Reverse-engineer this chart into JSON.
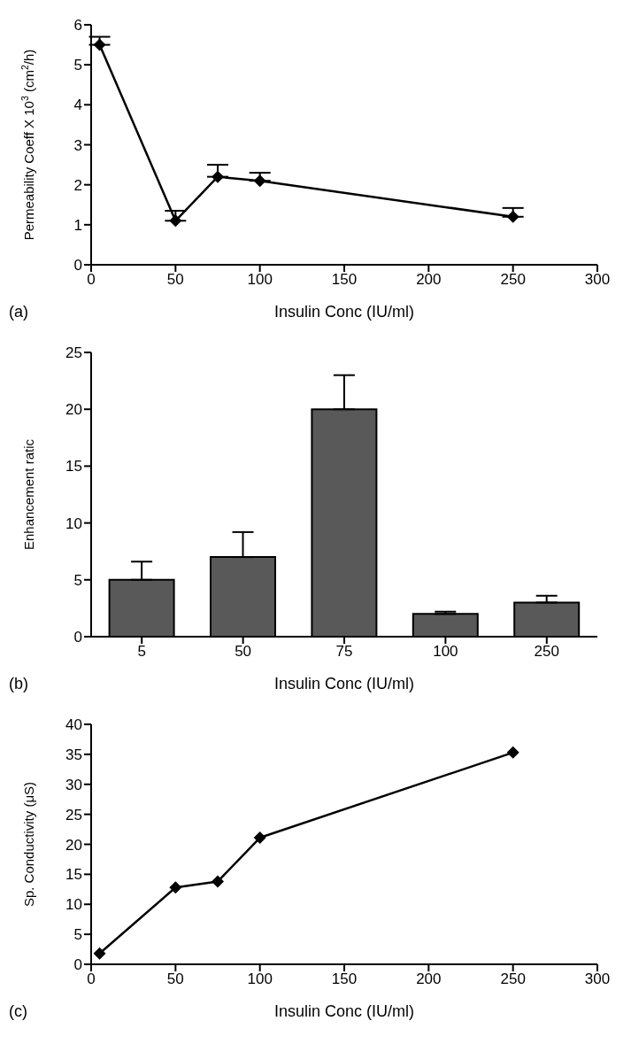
{
  "chart_data": [
    {
      "type": "line",
      "xlabel": "Insulin Conc (IU/ml)",
      "ylabel": "Permeability Coeff X 10$^{3}$ (cm$^{2}$/h)",
      "annotations": [
        "(a)"
      ],
      "x": [
        5,
        50,
        75,
        100,
        250
      ],
      "series": [
        {
          "color": "#000000",
          "values": [
            5.5,
            1.1,
            2.2,
            2.1,
            1.2
          ],
          "errors": [
            [
              5.5,
              5.7
            ],
            [
              1.1,
              1.35
            ],
            [
              2.2,
              2.5
            ],
            [
              2.1,
              2.3
            ],
            [
              1.2,
              1.42
            ]
          ]
        }
      ],
      "xlim": [
        0,
        300
      ],
      "xticks": [
        0,
        50,
        100,
        150,
        200,
        250,
        300
      ],
      "ylim": [
        0,
        6
      ],
      "yticks": [
        0,
        1,
        2,
        3,
        4,
        5,
        6
      ],
      "grid": false,
      "marker": "diamond",
      "line_style": "solid"
    },
    {
      "type": "bar",
      "xlabel": "Insulin Conc (IU/ml)",
      "ylabel": "Enhancement ratic",
      "annotations": [
        "(b)"
      ],
      "categories": [
        "5",
        "50",
        "75",
        "100",
        "250"
      ],
      "series": [
        {
          "color": "#595959",
          "values": [
            5,
            7,
            20,
            2,
            3
          ],
          "errors": [
            [
              5,
              6.6
            ],
            [
              7,
              9.2
            ],
            [
              20,
              23
            ],
            [
              2,
              2.2
            ],
            [
              3,
              3.6
            ]
          ]
        }
      ],
      "ylim": [
        0,
        25
      ],
      "yticks": [
        0,
        5,
        10,
        15,
        20,
        25
      ],
      "grid": false
    },
    {
      "type": "line",
      "xlabel": "Insulin Conc (IU/ml)",
      "ylabel": "Sp. Conductivity (μS)",
      "annotations": [
        "(c)"
      ],
      "x": [
        5,
        50,
        75,
        100,
        250
      ],
      "series": [
        {
          "color": "#000000",
          "values": [
            1.8,
            12.8,
            13.8,
            21.1,
            35.3
          ]
        }
      ],
      "xlim": [
        0,
        300
      ],
      "xticks": [
        0,
        50,
        100,
        150,
        200,
        250,
        300
      ],
      "ylim": [
        0,
        40
      ],
      "yticks": [
        0,
        5,
        10,
        15,
        20,
        25,
        30,
        35,
        40
      ],
      "grid": false,
      "marker": "diamond",
      "line_style": "solid"
    }
  ]
}
